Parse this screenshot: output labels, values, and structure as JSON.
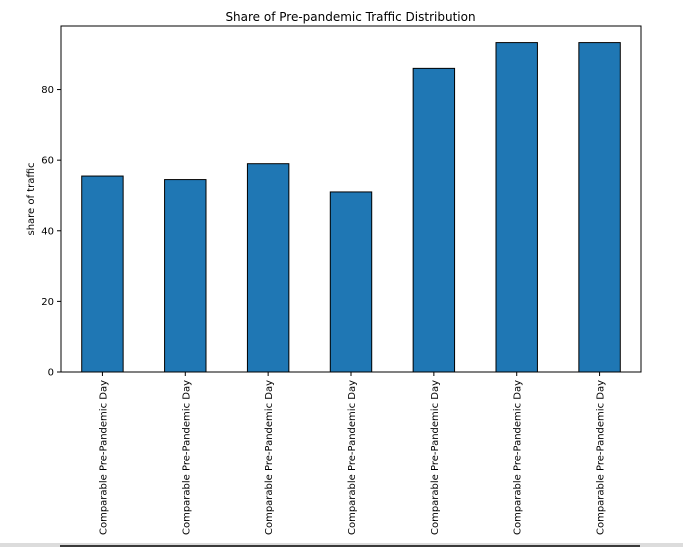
{
  "chart_data": {
    "type": "bar",
    "title": "Share of Pre-pandemic Traffic Distribution",
    "xlabel": "",
    "ylabel": "share of traffic",
    "categories": [
      "Comparable Pre-Pandemic Day",
      "Comparable Pre-Pandemic Day",
      "Comparable Pre-Pandemic Day",
      "Comparable Pre-Pandemic Day",
      "Comparable Pre-Pandemic Day",
      "Comparable Pre-Pandemic Day",
      "Comparable Pre-Pandemic Day"
    ],
    "values": [
      55.5,
      54.5,
      59,
      51,
      86,
      93.3,
      93.3
    ],
    "ylim": [
      0,
      98
    ],
    "yticks": [
      0,
      20,
      40,
      60,
      80
    ],
    "grid": false,
    "legend": "none",
    "bar_color": "#1f77b4",
    "edge_color": "#000000"
  }
}
